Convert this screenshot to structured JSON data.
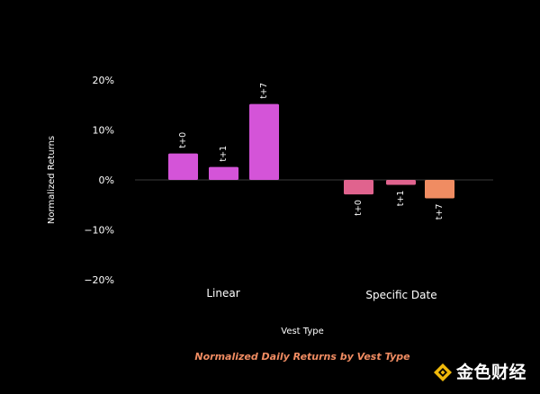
{
  "chart_data": {
    "type": "bar",
    "title": "Normalized Daily Returns by Vest Type",
    "xlabel": "Vest Type",
    "ylabel": "Normalized Returns",
    "ylim": [
      -20,
      20
    ],
    "yticks": [
      20,
      10,
      0,
      -10,
      -20
    ],
    "ytick_labels": [
      "20%",
      "10%",
      "0%",
      "−10%",
      "−20%"
    ],
    "grid": false,
    "legend": "none",
    "groups": [
      {
        "category": "Linear",
        "bars": [
          {
            "label": "t+0",
            "value": 5.3,
            "color": "#d454d8"
          },
          {
            "label": "t+1",
            "value": 2.6,
            "color": "#d454d8"
          },
          {
            "label": "t+7",
            "value": 15.2,
            "color": "#d454d8"
          }
        ]
      },
      {
        "category": "Specific Date",
        "bars": [
          {
            "label": "t+0",
            "value": -2.9,
            "color": "#e0638e"
          },
          {
            "label": "t+1",
            "value": -1.0,
            "color": "#e0638e"
          },
          {
            "label": "t+7",
            "value": -3.7,
            "color": "#f08c62"
          }
        ]
      }
    ],
    "colors": {
      "background": "#000000",
      "text": "#ffffff",
      "zero_line": "#3a3a3a",
      "caption": "#f08c62"
    }
  },
  "watermark": {
    "text": "金色财经",
    "icon": "gold-diamond-logo-icon",
    "color": "#f0b90b"
  }
}
